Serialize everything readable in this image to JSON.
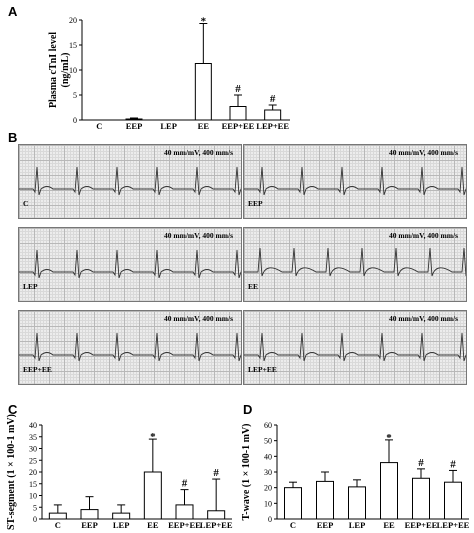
{
  "panels": {
    "a": "A",
    "b": "B",
    "c": "C",
    "d": "D"
  },
  "ecg_speed": "40 mm/mV, 400 mm/s",
  "ecg_groups": [
    "C",
    "EEP",
    "LEP",
    "EE",
    "EEP+EE",
    "LEP+EE"
  ],
  "chart_data": [
    {
      "type": "bar",
      "panel": "A",
      "ylabel": "Plasma cTnI level (ng/mL)",
      "ylabel_lines": [
        "Plasma cTnI level",
        "(ng/mL)"
      ],
      "categories": [
        "C",
        "EEP",
        "LEP",
        "EE",
        "EEP+EE",
        "LEP+EE"
      ],
      "values": [
        0.0,
        0.2,
        0.0,
        11.3,
        2.7,
        2.0
      ],
      "errors": [
        0.0,
        0.2,
        0.0,
        8.0,
        2.3,
        1.0
      ],
      "significance": [
        "",
        "",
        "",
        "*",
        "#",
        "#"
      ],
      "yticks": [
        0,
        5,
        10,
        15,
        20
      ],
      "ylim": [
        0,
        20
      ]
    },
    {
      "type": "bar",
      "panel": "C",
      "ylabel": "ST-segment (1 × 100-1 mV)",
      "categories": [
        "C",
        "EEP",
        "LEP",
        "EE",
        "EEP+EE",
        "LEP+EE"
      ],
      "values": [
        2.5,
        4.0,
        2.5,
        20.0,
        6.0,
        3.5
      ],
      "errors": [
        3.5,
        5.5,
        3.5,
        14.0,
        6.5,
        13.5
      ],
      "significance": [
        "",
        "",
        "",
        "*",
        "#",
        "#"
      ],
      "yticks": [
        0,
        5,
        10,
        15,
        20,
        25,
        30,
        35,
        40
      ],
      "ylim": [
        0,
        40
      ]
    },
    {
      "type": "bar",
      "panel": "D",
      "ylabel": "T-wave (1 × 100-1 mV)",
      "categories": [
        "C",
        "EEP",
        "LEP",
        "EE",
        "EEP+EE",
        "LEP+EE"
      ],
      "values": [
        20.0,
        24.0,
        20.5,
        36.0,
        26.0,
        23.5
      ],
      "errors": [
        3.5,
        6.0,
        4.5,
        14.5,
        6.0,
        7.5
      ],
      "significance": [
        "",
        "",
        "",
        "*",
        "#",
        "#"
      ],
      "yticks": [
        0,
        10,
        20,
        30,
        40,
        50,
        60
      ],
      "ylim": [
        0,
        60
      ]
    }
  ]
}
